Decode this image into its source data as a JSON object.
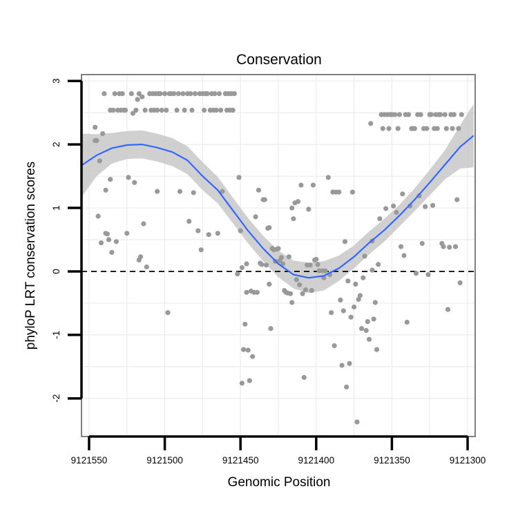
{
  "chart_data": {
    "type": "scatter",
    "title": "Conservation",
    "xlabel": "Genomic Position",
    "ylabel": "phyloP LRT conservation scores",
    "x_reversed": true,
    "xlim": [
      9121555,
      9121295
    ],
    "ylim": [
      -2.6,
      3.1
    ],
    "x_ticks": [
      9121550,
      9121500,
      9121450,
      9121400,
      9121350,
      9121300
    ],
    "x_tick_labels": [
      "9121550",
      "9121500",
      "9121450",
      "9121400",
      "9121350",
      "9121300"
    ],
    "y_ticks": [
      3,
      2,
      1,
      0,
      -1,
      -2
    ],
    "y_tick_labels": [
      "3",
      "2",
      "1",
      "0",
      "-1",
      "-2"
    ],
    "reference_line": 0,
    "points": [
      [
        9121545,
        2.06
      ],
      [
        9121546,
        2.06
      ],
      [
        9121546,
        2.27
      ],
      [
        9121544,
        0.87
      ],
      [
        9121543,
        1.74
      ],
      [
        9121542,
        0.45
      ],
      [
        9121541,
        2.17
      ],
      [
        9121540,
        2.8
      ],
      [
        9121539,
        0.6
      ],
      [
        9121539,
        1.28
      ],
      [
        9121538,
        0.59
      ],
      [
        9121537,
        0.5
      ],
      [
        9121536,
        1.45
      ],
      [
        9121536,
        2.54
      ],
      [
        9121535,
        0.3
      ],
      [
        9121534,
        2.54
      ],
      [
        9121533,
        2.8
      ],
      [
        9121532,
        0.47
      ],
      [
        9121531,
        2.54
      ],
      [
        9121530,
        2.8
      ],
      [
        9121529,
        2.54
      ],
      [
        9121528,
        2.8
      ],
      [
        9121527,
        2.54
      ],
      [
        9121526,
        2.54
      ],
      [
        9121525,
        0.6
      ],
      [
        9121524,
        1.48
      ],
      [
        9121522,
        2.8
      ],
      [
        9121521,
        2.49
      ],
      [
        9121520,
        1.4
      ],
      [
        9121519,
        2.54
      ],
      [
        9121518,
        2.71
      ],
      [
        9121517,
        0.18
      ],
      [
        9121517,
        2.8
      ],
      [
        9121516,
        0.23
      ],
      [
        9121515,
        2.75
      ],
      [
        9121514,
        0.75
      ],
      [
        9121513,
        2.54
      ],
      [
        9121512,
        0.07
      ],
      [
        9121510,
        2.8
      ],
      [
        9121509,
        2.54
      ],
      [
        9121508,
        2.8
      ],
      [
        9121507,
        2.54
      ],
      [
        9121506,
        2.8
      ],
      [
        9121505,
        1.26
      ],
      [
        9121505,
        2.54
      ],
      [
        9121504,
        2.8
      ],
      [
        9121503,
        2.8
      ],
      [
        9121502,
        2.54
      ],
      [
        9121500,
        2.8
      ],
      [
        9121499,
        2.54
      ],
      [
        9121498,
        -0.65
      ],
      [
        9121497,
        2.8
      ],
      [
        9121496,
        2.8
      ],
      [
        9121494,
        2.8
      ],
      [
        9121492,
        2.54
      ],
      [
        9121491,
        2.8
      ],
      [
        9121490,
        1.26
      ],
      [
        9121488,
        2.8
      ],
      [
        9121487,
        2.54
      ],
      [
        9121485,
        2.8
      ],
      [
        9121484,
        0.79
      ],
      [
        9121483,
        2.8
      ],
      [
        9121482,
        2.54
      ],
      [
        9121481,
        1.24
      ],
      [
        9121480,
        2.8
      ],
      [
        9121478,
        0.64
      ],
      [
        9121477,
        2.8
      ],
      [
        9121476,
        0.34
      ],
      [
        9121475,
        2.8
      ],
      [
        9121474,
        2.54
      ],
      [
        9121473,
        2.8
      ],
      [
        9121472,
        2.8
      ],
      [
        9121471,
        0.58
      ],
      [
        9121470,
        2.54
      ],
      [
        9121469,
        2.8
      ],
      [
        9121468,
        2.54
      ],
      [
        9121467,
        2.8
      ],
      [
        9121466,
        2.54
      ],
      [
        9121465,
        0.6
      ],
      [
        9121464,
        2.8
      ],
      [
        9121463,
        2.54
      ],
      [
        9121462,
        1.26
      ],
      [
        9121460,
        2.8
      ],
      [
        9121459,
        2.54
      ],
      [
        9121458,
        2.8
      ],
      [
        9121457,
        2.54
      ],
      [
        9121456,
        2.8
      ],
      [
        9121455,
        2.54
      ],
      [
        9121454,
        2.8
      ],
      [
        9121452,
        -0.04
      ],
      [
        9121451,
        1.48
      ],
      [
        9121450,
        0.64
      ],
      [
        9121449,
        0.06
      ],
      [
        9121449,
        -1.76
      ],
      [
        9121448,
        -1.23
      ],
      [
        9121447,
        -0.83
      ],
      [
        9121446,
        -0.33
      ],
      [
        9121446,
        0.12
      ],
      [
        9121445,
        -1.24
      ],
      [
        9121444,
        -1.72
      ],
      [
        9121443,
        -0.31
      ],
      [
        9121442,
        -1.34
      ],
      [
        9121441,
        -0.33
      ],
      [
        9121440,
        0.86
      ],
      [
        9121439,
        -0.33
      ],
      [
        9121438,
        1.28
      ],
      [
        9121437,
        0.13
      ],
      [
        9121436,
        0.11
      ],
      [
        9121435,
        1.13
      ],
      [
        9121434,
        1.13
      ],
      [
        9121433,
        0.1
      ],
      [
        9121432,
        0.68
      ],
      [
        9121431,
        -0.2
      ],
      [
        9121431,
        0.69
      ],
      [
        9121430,
        -0.9
      ],
      [
        9121429,
        0.36
      ],
      [
        9121428,
        0.34
      ],
      [
        9121427,
        0.16
      ],
      [
        9121426,
        0.35
      ],
      [
        9121425,
        0.36
      ],
      [
        9121424,
        0.17
      ],
      [
        9121423,
        0.22
      ],
      [
        9121422,
        0.12
      ],
      [
        9121421,
        -0.3
      ],
      [
        9121420,
        -0.33
      ],
      [
        9121419,
        -0.34
      ],
      [
        9121418,
        0.23
      ],
      [
        9121417,
        -0.35
      ],
      [
        9121416,
        -0.49
      ],
      [
        9121416,
        1.0
      ],
      [
        9121415,
        0.83
      ],
      [
        9121414,
        1.08
      ],
      [
        9121413,
        -0.13
      ],
      [
        9121412,
        1.1
      ],
      [
        9121411,
        -0.21
      ],
      [
        9121410,
        1.36
      ],
      [
        9121409,
        -0.35
      ],
      [
        9121408,
        -1.67
      ],
      [
        9121407,
        -0.29
      ],
      [
        9121406,
        0.1
      ],
      [
        9121405,
        0.98
      ],
      [
        9121404,
        0.1
      ],
      [
        9121403,
        -0.3
      ],
      [
        9121402,
        1.36
      ],
      [
        9121401,
        0.18
      ],
      [
        9121400,
        0.19
      ],
      [
        9121399,
        0.11
      ],
      [
        9121398,
        0.01
      ],
      [
        9121396,
        0.01
      ],
      [
        9121395,
        -0.1
      ],
      [
        9121394,
        0.01
      ],
      [
        9121392,
        1.48
      ],
      [
        9121391,
        -0.05
      ],
      [
        9121390,
        -0.65
      ],
      [
        9121389,
        1.25
      ],
      [
        9121388,
        -1.17
      ],
      [
        9121387,
        1.25
      ],
      [
        9121385,
        1.25
      ],
      [
        9121384,
        -0.45
      ],
      [
        9121383,
        -1.48
      ],
      [
        9121382,
        -0.62
      ],
      [
        9121381,
        0.47
      ],
      [
        9121380,
        -1.82
      ],
      [
        9121379,
        -0.15
      ],
      [
        9121378,
        -1.45
      ],
      [
        9121377,
        -0.72
      ],
      [
        9121376,
        1.25
      ],
      [
        9121375,
        -0.56
      ],
      [
        9121374,
        -0.2
      ],
      [
        9121373,
        -2.37
      ],
      [
        9121372,
        -0.44
      ],
      [
        9121371,
        -0.38
      ],
      [
        9121370,
        -0.9
      ],
      [
        9121369,
        -0.1
      ],
      [
        9121368,
        0.24
      ],
      [
        9121367,
        -0.93
      ],
      [
        9121366,
        -0.79
      ],
      [
        9121365,
        -1.07
      ],
      [
        9121364,
        2.33
      ],
      [
        9121363,
        0.48
      ],
      [
        9121363,
        0.02
      ],
      [
        9121362,
        -0.75
      ],
      [
        9121361,
        -0.49
      ],
      [
        9121360,
        -1.23
      ],
      [
        9121359,
        0.11
      ],
      [
        9121358,
        0.83
      ],
      [
        9121357,
        2.47
      ],
      [
        9121356,
        2.25
      ],
      [
        9121355,
        2.47
      ],
      [
        9121354,
        0.99
      ],
      [
        9121353,
        2.47
      ],
      [
        9121352,
        2.25
      ],
      [
        9121351,
        2.47
      ],
      [
        9121350,
        2.47
      ],
      [
        9121349,
        1.03
      ],
      [
        9121348,
        2.47
      ],
      [
        9121347,
        0.93
      ],
      [
        9121346,
        2.25
      ],
      [
        9121345,
        2.47
      ],
      [
        9121344,
        0.39
      ],
      [
        9121343,
        1.22
      ],
      [
        9121342,
        0.25
      ],
      [
        9121341,
        2.47
      ],
      [
        9121340,
        -0.8
      ],
      [
        9121339,
        2.47
      ],
      [
        9121338,
        1.03
      ],
      [
        9121337,
        2.25
      ],
      [
        9121336,
        2.25
      ],
      [
        9121335,
        2.25
      ],
      [
        9121334,
        -0.03
      ],
      [
        9121333,
        2.47
      ],
      [
        9121332,
        1.19
      ],
      [
        9121331,
        2.47
      ],
      [
        9121330,
        0.44
      ],
      [
        9121329,
        2.25
      ],
      [
        9121328,
        1.02
      ],
      [
        9121327,
        2.25
      ],
      [
        9121326,
        -0.05
      ],
      [
        9121325,
        2.47
      ],
      [
        9121324,
        2.47
      ],
      [
        9121323,
        1.04
      ],
      [
        9121322,
        2.25
      ],
      [
        9121321,
        2.47
      ],
      [
        9121320,
        2.25
      ],
      [
        9121319,
        2.47
      ],
      [
        9121318,
        2.47
      ],
      [
        9121317,
        0.44
      ],
      [
        9121316,
        0.39
      ],
      [
        9121315,
        2.47
      ],
      [
        9121314,
        2.25
      ],
      [
        9121313,
        -0.6
      ],
      [
        9121312,
        0.38
      ],
      [
        9121311,
        2.47
      ],
      [
        9121310,
        2.25
      ],
      [
        9121309,
        2.47
      ],
      [
        9121308,
        0.39
      ],
      [
        9121307,
        1.13
      ],
      [
        9121306,
        2.25
      ],
      [
        9121305,
        -0.18
      ],
      [
        9121304,
        2.47
      ]
    ],
    "smooth": {
      "x": [
        9121555,
        9121545,
        9121535,
        9121525,
        9121515,
        9121505,
        9121495,
        9121485,
        9121475,
        9121465,
        9121455,
        9121445,
        9121435,
        9121425,
        9121415,
        9121405,
        9121395,
        9121385,
        9121375,
        9121365,
        9121355,
        9121345,
        9121335,
        9121325,
        9121315,
        9121305,
        9121296
      ],
      "y": [
        1.67,
        1.83,
        1.94,
        1.99,
        2.0,
        1.95,
        1.88,
        1.75,
        1.5,
        1.28,
        0.96,
        0.64,
        0.36,
        0.12,
        -0.05,
        -0.1,
        -0.07,
        0.05,
        0.23,
        0.45,
        0.65,
        0.88,
        1.13,
        1.4,
        1.68,
        1.96,
        2.14
      ],
      "se": [
        0.5,
        0.33,
        0.24,
        0.22,
        0.22,
        0.22,
        0.22,
        0.22,
        0.22,
        0.21,
        0.2,
        0.2,
        0.2,
        0.21,
        0.22,
        0.24,
        0.23,
        0.2,
        0.18,
        0.18,
        0.18,
        0.17,
        0.18,
        0.2,
        0.23,
        0.34,
        0.5
      ]
    },
    "colors": {
      "point": "#999999",
      "line": "#3366FF",
      "band": "#C8C8C8",
      "grid": "#ECECEC",
      "panel_border": "#7F7F7F",
      "ref_line": "#000000"
    }
  }
}
